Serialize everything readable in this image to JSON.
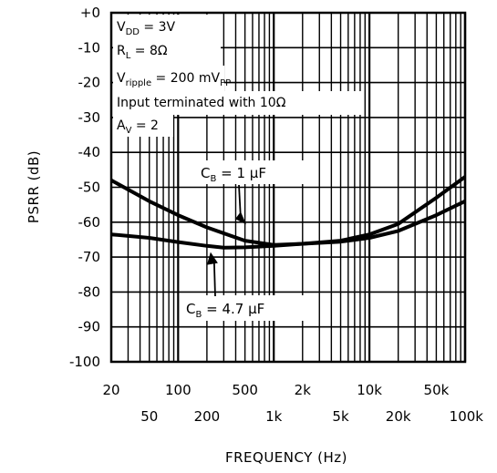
{
  "chart_data": {
    "type": "line",
    "title": "",
    "xlabel": "FREQUENCY (Hz)",
    "ylabel": "PSRR (dB)",
    "x_scale": "log",
    "xlim": [
      20,
      100000
    ],
    "ylim": [
      -100,
      0
    ],
    "grid": true,
    "y_ticks": [
      {
        "value": 0,
        "label": "+0"
      },
      {
        "value": -10,
        "label": "-10"
      },
      {
        "value": -20,
        "label": "-20"
      },
      {
        "value": -30,
        "label": "-30"
      },
      {
        "value": -40,
        "label": "-40"
      },
      {
        "value": -50,
        "label": "-50"
      },
      {
        "value": -60,
        "label": "-60"
      },
      {
        "value": -70,
        "label": "-70"
      },
      {
        "value": -80,
        "label": "-80"
      },
      {
        "value": -90,
        "label": "-90"
      },
      {
        "value": -100,
        "label": "-100"
      }
    ],
    "x_ticks_upper": [
      {
        "value": 20,
        "label": "20"
      },
      {
        "value": 100,
        "label": "100"
      },
      {
        "value": 500,
        "label": "500"
      },
      {
        "value": 2000,
        "label": "2k"
      },
      {
        "value": 10000,
        "label": "10k"
      },
      {
        "value": 50000,
        "label": "50k"
      }
    ],
    "x_ticks_lower": [
      {
        "value": 50,
        "label": "50"
      },
      {
        "value": 200,
        "label": "200"
      },
      {
        "value": 1000,
        "label": "1k"
      },
      {
        "value": 5000,
        "label": "5k"
      },
      {
        "value": 20000,
        "label": "20k"
      },
      {
        "value": 100000,
        "label": "100k"
      }
    ],
    "conditions": [
      {
        "base": "V",
        "sub": "DD",
        "rest": " = 3V"
      },
      {
        "base": "R",
        "sub": "L",
        "rest": " = 8Ω"
      },
      {
        "base": "V",
        "sub": "ripple",
        "rest": " = 200 mV",
        "sub2": "PP"
      },
      {
        "base": "Input terminated with 10Ω",
        "sub": "",
        "rest": ""
      },
      {
        "base": "A",
        "sub": "V",
        "rest": " = 2"
      }
    ],
    "series": [
      {
        "label": {
          "base": "C",
          "sub": "B",
          "rest": " = 1 μF"
        },
        "x": [
          20,
          50,
          100,
          200,
          500,
          1000,
          2000,
          5000,
          10000,
          20000,
          50000,
          100000
        ],
        "y": [
          -48,
          -54,
          -58,
          -61.5,
          -65.3,
          -66.5,
          -66.2,
          -65.3,
          -63.5,
          -60.5,
          -53,
          -47
        ]
      },
      {
        "label": {
          "base": "C",
          "sub": "B",
          "rest": " = 4.7 μF"
        },
        "x": [
          20,
          50,
          100,
          200,
          300,
          500,
          1000,
          2000,
          5000,
          10000,
          20000,
          50000,
          100000
        ],
        "y": [
          -63.5,
          -64.5,
          -65.7,
          -66.8,
          -67.3,
          -67.2,
          -66.8,
          -66.2,
          -65.6,
          -64.5,
          -62.5,
          -58,
          -54
        ]
      }
    ]
  }
}
